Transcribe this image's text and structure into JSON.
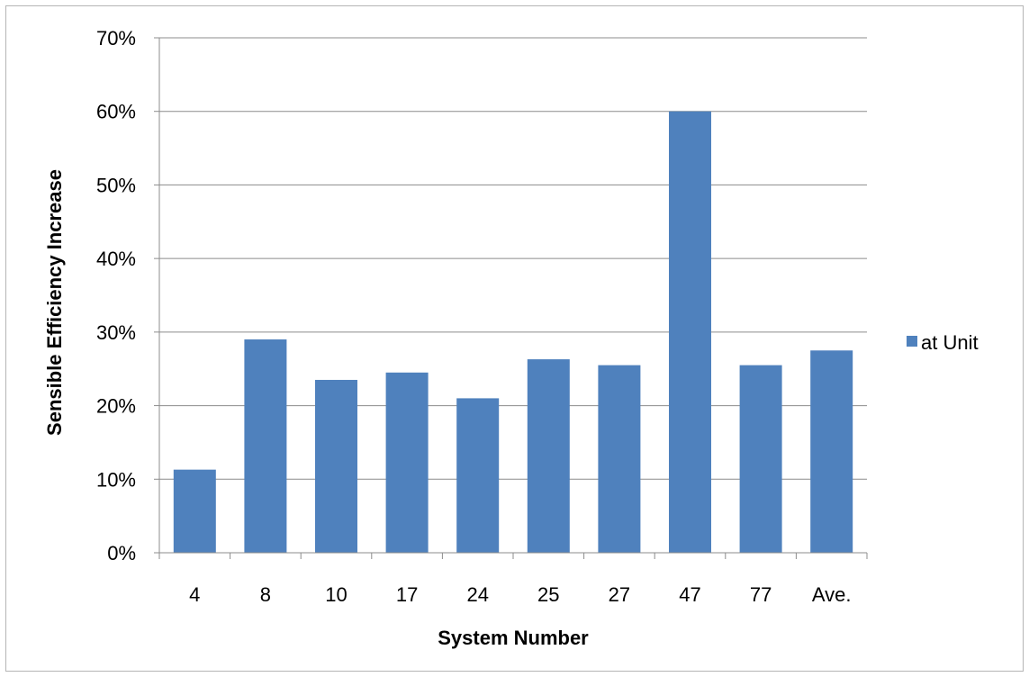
{
  "chart_data": {
    "type": "bar",
    "categories": [
      "4",
      "8",
      "10",
      "17",
      "24",
      "25",
      "27",
      "47",
      "77",
      "Ave."
    ],
    "series": [
      {
        "name": "at Unit",
        "values": [
          0.113,
          0.29,
          0.235,
          0.245,
          0.21,
          0.263,
          0.255,
          0.6,
          0.255,
          0.275
        ],
        "color": "#4f81bd"
      }
    ],
    "xlabel": "System Number",
    "ylabel": "Sensible Efficiency Increase",
    "ylim": [
      0,
      0.7
    ],
    "yticks": [
      {
        "value": 0,
        "label": "0%"
      },
      {
        "value": 0.1,
        "label": "10%"
      },
      {
        "value": 0.2,
        "label": "20%"
      },
      {
        "value": 0.3,
        "label": "30%"
      },
      {
        "value": 0.4,
        "label": "40%"
      },
      {
        "value": 0.5,
        "label": "50%"
      },
      {
        "value": 0.6,
        "label": "60%"
      },
      {
        "value": 0.7,
        "label": "70%"
      }
    ],
    "grid": true,
    "legend_position": "right"
  }
}
